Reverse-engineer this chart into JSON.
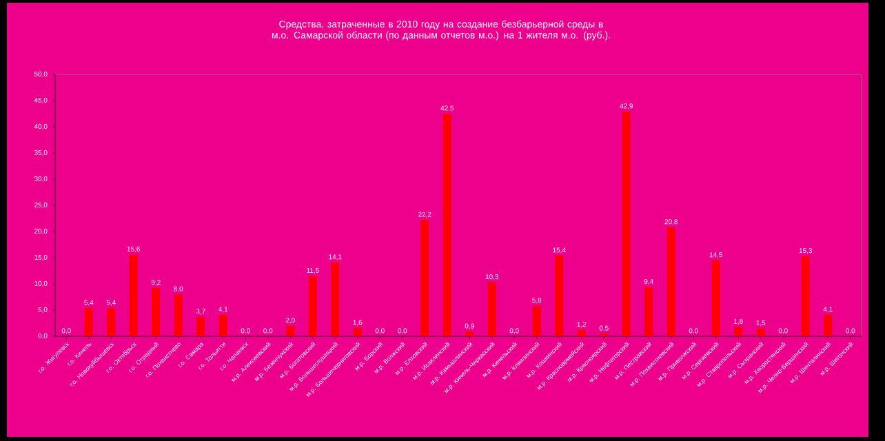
{
  "chart_data": {
    "type": "bar",
    "title": "Средства, затраченные в 2010 году на создание безбарьерной среды в м.о. Самарской области (по данным отчетов м.о.) на 1 жителя м.о. (руб.).",
    "categories": [
      "г.о. Жигулевск",
      "г.о. Кинель",
      "г.о. Новокуйбышевск",
      "г.о. Октябрьск",
      "г.о. Отрадный",
      "г.о. Похвистнево",
      "г.о. Самара",
      "г.о. Тольятти",
      "г.о. Чапаевск",
      "м.р. Алексеевский",
      "м.р. Безенчукский",
      "м.р. Богатовский",
      "м.р. Большеглушицкий",
      "м.р. Большечерниговский",
      "м.р. Борский",
      "м.р. Волжский",
      "м.р. Елховский",
      "м.р. Исаклинский",
      "м.р. Камышлинский",
      "м.р. Кинель-Черкасский",
      "м.р. Кинельский",
      "м.р. Клявлинский",
      "м.р. Кошкинский",
      "м.р. Красноармейский",
      "м.р. Красноярский",
      "м.р. Нефтегорский",
      "м.р. Пестравский",
      "м.р. Похвистневский",
      "м.р. Приволжский",
      "м.р. Сергиевский",
      "м.р. Ставропольский",
      "м.р. Сызранский",
      "м.р. Хворостянский",
      "м.р. Челно-Вершинский",
      "м.р. Шенталинский",
      "м.р. Шигонский"
    ],
    "values": [
      0.0,
      5.4,
      5.4,
      15.6,
      9.2,
      8.0,
      3.7,
      4.1,
      0.0,
      0.0,
      2.0,
      11.5,
      14.1,
      1.6,
      0.0,
      0.0,
      22.2,
      42.5,
      0.9,
      10.3,
      0.0,
      5.8,
      15.4,
      1.2,
      0.5,
      42.9,
      9.4,
      20.8,
      0.0,
      14.5,
      1.8,
      1.5,
      0.0,
      15.3,
      4.1,
      0.0
    ],
    "value_labels": [
      "0,0",
      "5,4",
      "5,4",
      "15,6",
      "9,2",
      "8,0",
      "3,7",
      "4,1",
      "0,0",
      "0,0",
      "2,0",
      "11,5",
      "14,1",
      "1,6",
      "0,0",
      "0,0",
      "22,2",
      "42,5",
      "0,9",
      "10,3",
      "0,0",
      "5,8",
      "15,4",
      "1,2",
      "0,5",
      "42,9",
      "9,4",
      "20,8",
      "0,0",
      "14,5",
      "1,8",
      "1,5",
      "0,0",
      "15,3",
      "4,1",
      "0,0"
    ],
    "color": "#ff0000",
    "ylim": [
      0,
      50
    ],
    "yticks": [
      {
        "value": 0,
        "label": "0,0"
      },
      {
        "value": 5,
        "label": "5,0"
      },
      {
        "value": 10,
        "label": "10,0"
      },
      {
        "value": 15,
        "label": "15,0"
      },
      {
        "value": 20,
        "label": "20,0"
      },
      {
        "value": 25,
        "label": "25,0"
      },
      {
        "value": 30,
        "label": "30,0"
      },
      {
        "value": 35,
        "label": "35,0"
      },
      {
        "value": 40,
        "label": "40,0"
      },
      {
        "value": 45,
        "label": "45,0"
      },
      {
        "value": 50,
        "label": "50,0"
      }
    ],
    "grid": false
  }
}
